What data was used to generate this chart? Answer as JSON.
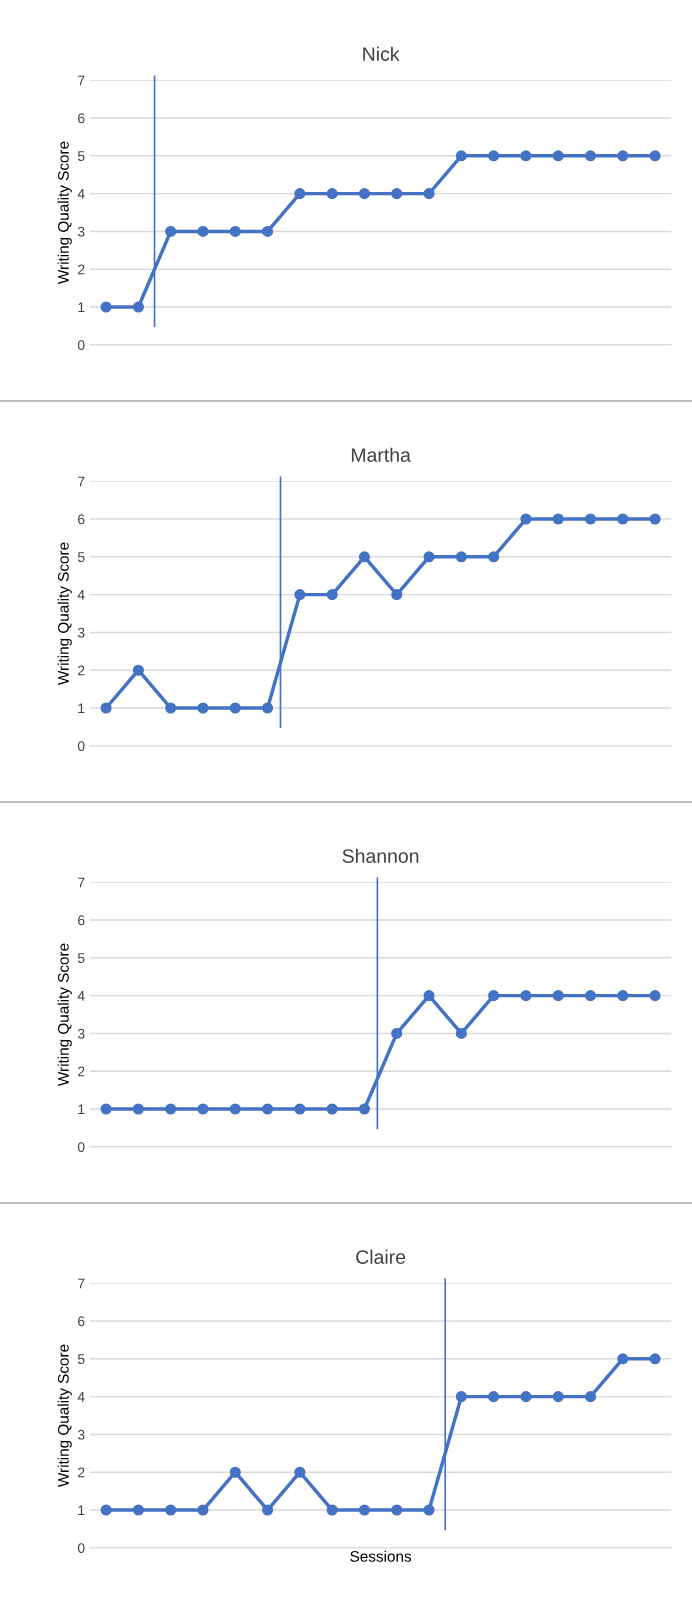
{
  "chart_data": [
    {
      "type": "line",
      "title": "Nick",
      "ylabel": "Writing Quality Score",
      "categories": [
        null,
        null,
        null,
        null,
        null,
        null,
        null,
        null,
        null,
        null,
        null,
        null,
        null,
        null,
        null,
        null,
        null,
        null
      ],
      "series": [
        {
          "color": "#4472c4",
          "values": [
            1,
            1,
            3,
            3,
            3,
            3,
            4,
            4,
            4,
            4,
            4,
            5,
            5,
            5,
            5,
            5,
            5,
            5
          ]
        }
      ],
      "ylim": [
        0,
        7
      ],
      "yticks": [
        0,
        1,
        2,
        3,
        4,
        5,
        6,
        7
      ],
      "grid": "y",
      "marker": "circle",
      "line_style": "solid",
      "tick_labels": "y"
    },
    {
      "type": "line",
      "title": "Martha",
      "ylabel": "Writing Quality Score",
      "categories": [
        null,
        null,
        null,
        null,
        null,
        null,
        null,
        null,
        null,
        null,
        null,
        null,
        null,
        null,
        null,
        null,
        null,
        null
      ],
      "series": [
        {
          "color": "#4472c4",
          "values": [
            1,
            2,
            1,
            1,
            1,
            1,
            4,
            4,
            5,
            4,
            5,
            5,
            5,
            6,
            6,
            6,
            6,
            6
          ]
        }
      ],
      "ylim": [
        0,
        7
      ],
      "yticks": [
        0,
        1,
        2,
        3,
        4,
        5,
        6,
        7
      ],
      "grid": "y",
      "marker": "circle",
      "line_style": "solid",
      "tick_labels": "y"
    },
    {
      "type": "line",
      "title": "Shannon",
      "ylabel": "Writing Quality Score",
      "categories": [
        null,
        null,
        null,
        null,
        null,
        null,
        null,
        null,
        null,
        null,
        null,
        null,
        null,
        null,
        null,
        null,
        null,
        null
      ],
      "series": [
        {
          "color": "#4472c4",
          "values": [
            1,
            1,
            1,
            1,
            1,
            1,
            1,
            1,
            1,
            3,
            4,
            3,
            4,
            4,
            4,
            4,
            4,
            4
          ]
        }
      ],
      "ylim": [
        0,
        7
      ],
      "yticks": [
        0,
        1,
        2,
        3,
        4,
        5,
        6,
        7
      ],
      "grid": "y",
      "marker": "circle",
      "line_style": "solid",
      "tick_labels": "y"
    },
    {
      "type": "line",
      "title": "Claire",
      "xlabel": "Sessions",
      "ylabel": "Writing Quality Score",
      "categories": [
        null,
        null,
        null,
        null,
        null,
        null,
        null,
        null,
        null,
        null,
        null,
        null,
        null,
        null,
        null,
        null,
        null,
        null
      ],
      "series": [
        {
          "color": "#4472c4",
          "values": [
            1,
            1,
            1,
            1,
            2,
            1,
            2,
            1,
            1,
            1,
            1,
            4,
            4,
            4,
            4,
            4,
            5,
            5
          ]
        }
      ],
      "ylim": [
        0,
        7
      ],
      "yticks": [
        0,
        1,
        2,
        3,
        4,
        5,
        6,
        7
      ],
      "grid": "y",
      "marker": "circle",
      "line_style": "solid",
      "tick_labels": "y"
    }
  ]
}
